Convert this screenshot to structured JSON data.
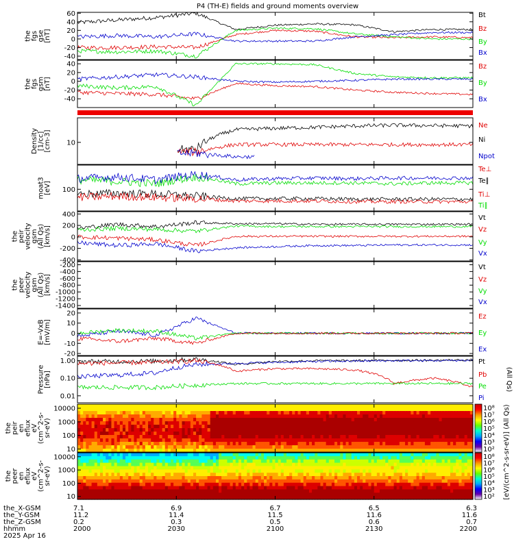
{
  "title": "P4 (TH-E) fields and ground moments overview",
  "colors": {
    "black": "#000000",
    "red": "#e00000",
    "green": "#00dd00",
    "blue": "#0000cc"
  },
  "chart_data": {
    "type": "line",
    "x_axis": {
      "unit": "hhmm",
      "ticks": [
        "2000",
        "2030",
        "2100",
        "2130",
        "2200"
      ],
      "date": "2025 Apr 16",
      "range": [
        "2000",
        "2200"
      ],
      "rows": [
        {
          "label": "the_X-GSM",
          "values": [
            "7.1",
            "6.9",
            "6.7",
            "6.5",
            "6.3"
          ]
        },
        {
          "label": "the_Y-GSM",
          "values": [
            "11.2",
            "11.4",
            "11.5",
            "11.6",
            "11.6"
          ]
        },
        {
          "label": "the_Z-GSM",
          "values": [
            "0.2",
            "0.3",
            "0.5",
            "0.6",
            "0.7"
          ]
        },
        {
          "label": "hhmm",
          "values": [
            "2000",
            "2030",
            "2100",
            "2130",
            "2200"
          ]
        }
      ]
    },
    "panels": [
      {
        "ylabel": [
          "the",
          "fgs",
          "gse",
          "[nT]"
        ],
        "yticks": [
          "60",
          "40",
          "20",
          "0",
          "-20",
          "-40"
        ],
        "ylim": [
          -48,
          62
        ],
        "legend": [
          {
            "name": "Bt",
            "color": "#000000"
          },
          {
            "name": "Bz",
            "color": "#e00000"
          },
          {
            "name": "By",
            "color": "#00dd00"
          },
          {
            "name": "Bx",
            "color": "#0000cc"
          }
        ],
        "series": [
          {
            "name": "Bt",
            "color": "#000000",
            "values": [
              38,
              44,
              50,
              60,
              22,
              32,
              35,
              33,
              17,
              22,
              22
            ]
          },
          {
            "name": "Bz",
            "color": "#e00000",
            "values": [
              -20,
              -20,
              -18,
              -20,
              10,
              20,
              18,
              5,
              3,
              5,
              3
            ]
          },
          {
            "name": "By",
            "color": "#00dd00",
            "values": [
              -28,
              -30,
              -28,
              -40,
              20,
              25,
              24,
              12,
              5,
              0,
              0
            ]
          },
          {
            "name": "Bx",
            "color": "#0000cc",
            "values": [
              5,
              8,
              5,
              12,
              -5,
              -5,
              -5,
              5,
              10,
              15,
              15
            ]
          }
        ]
      },
      {
        "ylabel": [
          "the",
          "fgs",
          "gsm",
          "[nT]"
        ],
        "yticks": [
          "40",
          "20",
          "0",
          "-20",
          "-40"
        ],
        "ylim": [
          -60,
          48
        ],
        "legend": [
          {
            "name": "Bz",
            "color": "#e00000"
          },
          {
            "name": "By",
            "color": "#00dd00"
          },
          {
            "name": "Bx",
            "color": "#0000cc"
          }
        ],
        "series": [
          {
            "name": "Bz",
            "color": "#e00000",
            "values": [
              -25,
              -28,
              -30,
              -40,
              -5,
              -10,
              -12,
              -20,
              -25,
              -28,
              -30
            ]
          },
          {
            "name": "By",
            "color": "#00dd00",
            "values": [
              -10,
              -15,
              -12,
              -55,
              40,
              40,
              38,
              18,
              10,
              8,
              8
            ]
          },
          {
            "name": "Bx",
            "color": "#0000cc",
            "values": [
              5,
              10,
              15,
              10,
              0,
              -2,
              0,
              2,
              5,
              5,
              5
            ]
          }
        ]
      },
      {
        "ylabel": [
          "Density",
          "[1/cc]",
          "[cm-3]"
        ],
        "yticks": [
          "10"
        ],
        "ylim": [
          2,
          60
        ],
        "log": true,
        "legend": [
          {
            "name": "Ne",
            "color": "#e00000"
          },
          {
            "name": "Ni",
            "color": "#000000"
          },
          {
            "name": "Npot",
            "color": "#0000cc"
          }
        ],
        "series": [
          {
            "name": "Ni",
            "color": "#000000",
            "values": [
              null,
              null,
              null,
              6,
              25,
              28,
              30,
              33,
              35,
              34,
              33
            ]
          },
          {
            "name": "Ne",
            "color": "#e00000",
            "values": [
              null,
              null,
              null,
              5,
              8.5,
              8.5,
              8.5,
              8.5,
              8.5,
              8.5,
              8.5
            ]
          },
          {
            "name": "Npot",
            "color": "#0000cc",
            "values": [
              null,
              null,
              null,
              4.5,
              3.5,
              null,
              null,
              null,
              null,
              null,
              null
            ]
          }
        ]
      },
      {
        "ylabel": [
          "moat3",
          "[eV]"
        ],
        "yticks": [
          "100"
        ],
        "ylim": [
          20,
          600
        ],
        "log": true,
        "legend": [
          {
            "name": "Te⊥",
            "color": "#e00000"
          },
          {
            "name": "Te∥",
            "color": "#000000"
          },
          {
            "name": "Ti⊥",
            "color": "#e00000"
          },
          {
            "name": "Ti∥",
            "color": "#00dd00"
          }
        ],
        "series": [
          {
            "name": "Ti∥",
            "color": "#00dd00",
            "values": [
              200,
              180,
              150,
              250,
              150,
              160,
              160,
              160,
              150,
              160,
              160
            ]
          },
          {
            "name": "Te∥",
            "color": "#000000",
            "values": [
              70,
              75,
              70,
              60,
              50,
              50,
              50,
              48,
              48,
              48,
              48
            ]
          },
          {
            "name": "Ti⊥",
            "color": "#e00000",
            "values": [
              55,
              60,
              55,
              50,
              42,
              42,
              42,
              40,
              40,
              40,
              40
            ]
          },
          {
            "name": "Te⊥",
            "color": "#0000cc",
            "values": [
              220,
              250,
              200,
              300,
              200,
              220,
              230,
              220,
              230,
              230,
              230
            ]
          }
        ]
      },
      {
        "ylabel": [
          "the",
          "peir",
          "velocity",
          "gsm",
          "(All Qs)",
          "[km/s]"
        ],
        "yticks": [
          "400",
          "200",
          "0",
          "-200",
          "-400"
        ],
        "ylim": [
          -420,
          440
        ],
        "legend": [
          {
            "name": "Vt",
            "color": "#000000"
          },
          {
            "name": "Vz",
            "color": "#e00000"
          },
          {
            "name": "Vy",
            "color": "#00dd00"
          },
          {
            "name": "Vx",
            "color": "#0000cc"
          }
        ],
        "series": [
          {
            "name": "Vt",
            "color": "#000000",
            "values": [
              150,
              220,
              180,
              250,
              230,
              230,
              220,
              220,
              220,
              220,
              220
            ]
          },
          {
            "name": "Vz",
            "color": "#e00000",
            "values": [
              0,
              -20,
              -50,
              -150,
              10,
              10,
              10,
              10,
              10,
              10,
              10
            ]
          },
          {
            "name": "Vy",
            "color": "#00dd00",
            "values": [
              120,
              150,
              130,
              100,
              190,
              180,
              180,
              180,
              180,
              180,
              180
            ]
          },
          {
            "name": "Vx",
            "color": "#0000cc",
            "values": [
              -100,
              -150,
              -120,
              -250,
              -190,
              -170,
              -150,
              -150,
              -140,
              -140,
              -140
            ]
          }
        ]
      },
      {
        "ylabel": [
          "the",
          "peer",
          "velocity",
          "gsm",
          "(All Qs)",
          "[km/s]"
        ],
        "yticks": [
          "-200",
          "-400",
          "-600",
          "-800",
          "-1000",
          "-1200",
          "-1400"
        ],
        "ylim": [
          -1480,
          -110
        ],
        "legend": [
          {
            "name": "Vt",
            "color": "#000000"
          },
          {
            "name": "Vz",
            "color": "#e00000"
          },
          {
            "name": "Vy",
            "color": "#00dd00"
          },
          {
            "name": "Vx",
            "color": "#0000cc"
          }
        ],
        "series": []
      },
      {
        "ylabel": [
          "E=-VxB",
          "[mV/m]"
        ],
        "yticks": [
          "20",
          "10",
          "0",
          "-10",
          "-20"
        ],
        "ylim": [
          -22,
          24
        ],
        "legend": [
          {
            "name": "Ez",
            "color": "#e00000"
          },
          {
            "name": "Ey",
            "color": "#00dd00"
          },
          {
            "name": "Ex",
            "color": "#0000cc"
          }
        ],
        "series": [
          {
            "name": "Ex",
            "color": "#0000cc",
            "values": [
              -3,
              2,
              -2,
              15,
              0,
              0,
              0,
              0,
              0,
              0,
              0
            ]
          },
          {
            "name": "Ey",
            "color": "#00dd00",
            "values": [
              0,
              3,
              2,
              -5,
              0,
              0,
              0,
              0,
              0,
              0,
              0
            ]
          },
          {
            "name": "Ez",
            "color": "#e00000",
            "values": [
              -5,
              -8,
              -5,
              -10,
              0,
              0,
              0,
              0,
              0,
              0,
              0
            ]
          }
        ]
      },
      {
        "ylabel": [
          "Pressure",
          "[nPa]"
        ],
        "yticks": [
          "1.00",
          "0.10",
          "0.01"
        ],
        "ylim": [
          0.004,
          1.8
        ],
        "log": true,
        "legend": [
          {
            "name": "Pt",
            "color": "#000000"
          },
          {
            "name": "Pb",
            "color": "#e00000"
          },
          {
            "name": "Pe",
            "color": "#00dd00"
          },
          {
            "name": "Pi",
            "color": "#0000cc"
          }
        ],
        "legend_note": "(All Qs)",
        "series": [
          {
            "name": "Pt",
            "color": "#000000",
            "values": [
              0.9,
              0.9,
              0.95,
              1.2,
              0.6,
              0.9,
              1.0,
              1.0,
              1.05,
              1.05,
              1.1
            ]
          },
          {
            "name": "Pi",
            "color": "#0000cc",
            "values": [
              0.12,
              0.15,
              0.2,
              0.6,
              0.7,
              0.8,
              0.9,
              0.95,
              1.0,
              1.0,
              1.05
            ]
          },
          {
            "name": "Pb",
            "color": "#e00000",
            "values": [
              0.7,
              0.75,
              0.8,
              1.0,
              0.25,
              0.35,
              0.35,
              0.3,
              0.05,
              0.1,
              0.03
            ]
          },
          {
            "name": "Pe",
            "color": "#00dd00",
            "values": [
              0.03,
              0.03,
              0.03,
              0.04,
              0.05,
              0.05,
              0.05,
              0.05,
              0.05,
              0.05,
              0.05
            ]
          }
        ]
      },
      {
        "type": "heatmap",
        "ylabel": [
          "the",
          "peir",
          "en",
          "eflux",
          "eV",
          "(cm^2-s-",
          "sr-eV)"
        ],
        "yticks": [
          "10000",
          "1000",
          "100",
          "10"
        ],
        "log": true
      },
      {
        "type": "heatmap",
        "ylabel": [
          "the",
          "peer",
          "en",
          "eflux",
          "eV",
          "(cm^2-s-",
          "sr-eV)"
        ],
        "yticks": [
          "10000",
          "1000",
          "100",
          "10"
        ],
        "log": true
      }
    ],
    "colorbar": {
      "label": "[eV/(cm^2-s-sr-eV)] (All Qs)",
      "ticks_top": [
        "10⁸",
        "10⁷",
        "10⁶",
        "10⁵",
        "10⁴",
        "10³",
        "10²"
      ],
      "ticks_bottom": [
        "10⁸",
        "10⁷",
        "10⁶",
        "10⁵",
        "10⁴",
        "10³",
        "10²"
      ]
    }
  }
}
